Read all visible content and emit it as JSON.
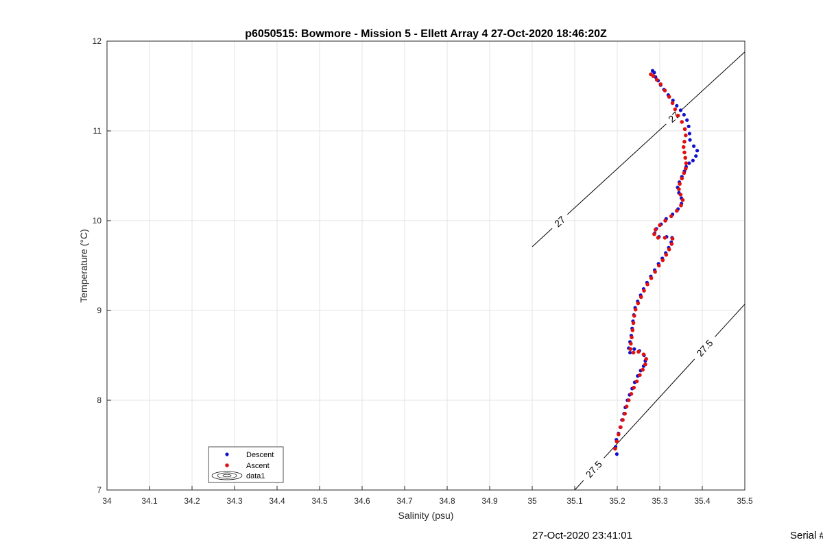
{
  "chart_data": {
    "type": "scatter",
    "title": "p6050515: Bowmore - Mission 5 - Ellett Array 4 27-Oct-2020 18:46:20Z",
    "xlabel": "Salinity (psu)",
    "ylabel": "Temperature (°C)",
    "xlim": [
      34,
      35.5
    ],
    "ylim": [
      7,
      12
    ],
    "x_ticks": [
      "34",
      "34.1",
      "34.2",
      "34.3",
      "34.4",
      "34.5",
      "34.6",
      "34.7",
      "34.8",
      "34.9",
      "35",
      "35.1",
      "35.2",
      "35.3",
      "35.4",
      "35.5"
    ],
    "y_ticks": [
      "7",
      "8",
      "9",
      "10",
      "11",
      "12"
    ],
    "grid": true,
    "legend_position": "bottom-left",
    "legend": [
      "Descent",
      "Ascent",
      "data1"
    ],
    "colors": {
      "descent": "#1010cc",
      "ascent": "#e01010",
      "contour": "#000000"
    },
    "contours": [
      {
        "label": "27",
        "points": [
          [
            35.0,
            9.71
          ],
          [
            35.5,
            11.88
          ]
        ],
        "label_positions": [
          [
            35.065,
            9.99
          ],
          [
            35.33,
            11.17
          ]
        ]
      },
      {
        "label": "27.5",
        "points": [
          [
            35.1,
            7.0
          ],
          [
            35.5,
            9.07
          ]
        ],
        "label_positions": [
          [
            35.145,
            7.23
          ],
          [
            35.42,
            8.52
          ]
        ]
      }
    ],
    "series": [
      {
        "name": "Descent",
        "marker": "pentagram",
        "points": [
          [
            35.199,
            7.4
          ],
          [
            35.196,
            7.48
          ],
          [
            35.198,
            7.56
          ],
          [
            35.203,
            7.63
          ],
          [
            35.207,
            7.7
          ],
          [
            35.211,
            7.78
          ],
          [
            35.216,
            7.85
          ],
          [
            35.219,
            7.92
          ],
          [
            35.224,
            8.0
          ],
          [
            35.229,
            8.06
          ],
          [
            35.235,
            8.13
          ],
          [
            35.241,
            8.2
          ],
          [
            35.248,
            8.27
          ],
          [
            35.255,
            8.33
          ],
          [
            35.262,
            8.38
          ],
          [
            35.266,
            8.44
          ],
          [
            35.263,
            8.5
          ],
          [
            35.252,
            8.55
          ],
          [
            35.24,
            8.57
          ],
          [
            35.23,
            8.53
          ],
          [
            35.227,
            8.58
          ],
          [
            35.23,
            8.65
          ],
          [
            35.233,
            8.72
          ],
          [
            35.235,
            8.8
          ],
          [
            35.237,
            8.88
          ],
          [
            35.239,
            8.95
          ],
          [
            35.242,
            9.03
          ],
          [
            35.248,
            9.1
          ],
          [
            35.255,
            9.17
          ],
          [
            35.262,
            9.24
          ],
          [
            35.27,
            9.31
          ],
          [
            35.279,
            9.38
          ],
          [
            35.288,
            9.45
          ],
          [
            35.297,
            9.52
          ],
          [
            35.306,
            9.58
          ],
          [
            35.314,
            9.64
          ],
          [
            35.321,
            9.7
          ],
          [
            35.327,
            9.76
          ],
          [
            35.329,
            9.81
          ],
          [
            35.316,
            9.82
          ],
          [
            35.298,
            9.82
          ],
          [
            35.288,
            9.86
          ],
          [
            35.292,
            9.91
          ],
          [
            35.303,
            9.96
          ],
          [
            35.315,
            10.02
          ],
          [
            35.33,
            10.07
          ],
          [
            35.343,
            10.13
          ],
          [
            35.351,
            10.19
          ],
          [
            35.351,
            10.25
          ],
          [
            35.345,
            10.31
          ],
          [
            35.342,
            10.37
          ],
          [
            35.346,
            10.43
          ],
          [
            35.352,
            10.49
          ],
          [
            35.358,
            10.55
          ],
          [
            35.362,
            10.6
          ],
          [
            35.369,
            10.64
          ],
          [
            35.378,
            10.67
          ],
          [
            35.385,
            10.72
          ],
          [
            35.388,
            10.78
          ],
          [
            35.38,
            10.83
          ],
          [
            35.371,
            10.9
          ],
          [
            35.37,
            10.97
          ],
          [
            35.368,
            11.05
          ],
          [
            35.364,
            11.12
          ],
          [
            35.357,
            11.18
          ],
          [
            35.349,
            11.23
          ],
          [
            35.34,
            11.28
          ],
          [
            35.331,
            11.34
          ],
          [
            35.32,
            11.4
          ],
          [
            35.31,
            11.46
          ],
          [
            35.302,
            11.51
          ],
          [
            35.296,
            11.56
          ],
          [
            35.29,
            11.6
          ],
          [
            35.287,
            11.65
          ],
          [
            35.283,
            11.67
          ]
        ]
      },
      {
        "name": "Ascent",
        "marker": "circle",
        "points": [
          [
            35.195,
            7.46
          ],
          [
            35.199,
            7.54
          ],
          [
            35.203,
            7.62
          ],
          [
            35.208,
            7.7
          ],
          [
            35.213,
            7.78
          ],
          [
            35.218,
            7.85
          ],
          [
            35.222,
            7.93
          ],
          [
            35.227,
            8.0
          ],
          [
            35.233,
            8.07
          ],
          [
            35.239,
            8.14
          ],
          [
            35.246,
            8.21
          ],
          [
            35.253,
            8.28
          ],
          [
            35.26,
            8.34
          ],
          [
            35.266,
            8.4
          ],
          [
            35.268,
            8.46
          ],
          [
            35.262,
            8.51
          ],
          [
            35.25,
            8.54
          ],
          [
            35.238,
            8.53
          ],
          [
            35.231,
            8.57
          ],
          [
            35.232,
            8.63
          ],
          [
            35.234,
            8.7
          ],
          [
            35.236,
            8.78
          ],
          [
            35.238,
            8.86
          ],
          [
            35.24,
            8.94
          ],
          [
            35.243,
            9.01
          ],
          [
            35.249,
            9.08
          ],
          [
            35.256,
            9.15
          ],
          [
            35.263,
            9.22
          ],
          [
            35.271,
            9.29
          ],
          [
            35.28,
            9.36
          ],
          [
            35.289,
            9.43
          ],
          [
            35.298,
            9.5
          ],
          [
            35.307,
            9.56
          ],
          [
            35.315,
            9.62
          ],
          [
            35.322,
            9.68
          ],
          [
            35.328,
            9.74
          ],
          [
            35.33,
            9.8
          ],
          [
            35.312,
            9.81
          ],
          [
            35.296,
            9.81
          ],
          [
            35.287,
            9.85
          ],
          [
            35.29,
            9.9
          ],
          [
            35.3,
            9.95
          ],
          [
            35.313,
            10.0
          ],
          [
            35.327,
            10.05
          ],
          [
            35.34,
            10.11
          ],
          [
            35.35,
            10.17
          ],
          [
            35.354,
            10.23
          ],
          [
            35.349,
            10.29
          ],
          [
            35.345,
            10.35
          ],
          [
            35.347,
            10.41
          ],
          [
            35.352,
            10.47
          ],
          [
            35.357,
            10.53
          ],
          [
            35.361,
            10.58
          ],
          [
            35.362,
            10.64
          ],
          [
            35.36,
            10.7
          ],
          [
            35.358,
            10.76
          ],
          [
            35.356,
            10.82
          ],
          [
            35.358,
            10.88
          ],
          [
            35.361,
            10.95
          ],
          [
            35.359,
            11.02
          ],
          [
            35.352,
            11.1
          ],
          [
            35.343,
            11.17
          ],
          [
            35.336,
            11.24
          ],
          [
            35.33,
            11.31
          ],
          [
            35.322,
            11.38
          ],
          [
            35.312,
            11.45
          ],
          [
            35.302,
            11.52
          ],
          [
            35.293,
            11.57
          ],
          [
            35.285,
            11.61
          ],
          [
            35.279,
            11.63
          ]
        ]
      }
    ]
  },
  "footer": {
    "timestamp": "27-Oct-2020 23:41:01",
    "serial": "Serial #"
  }
}
